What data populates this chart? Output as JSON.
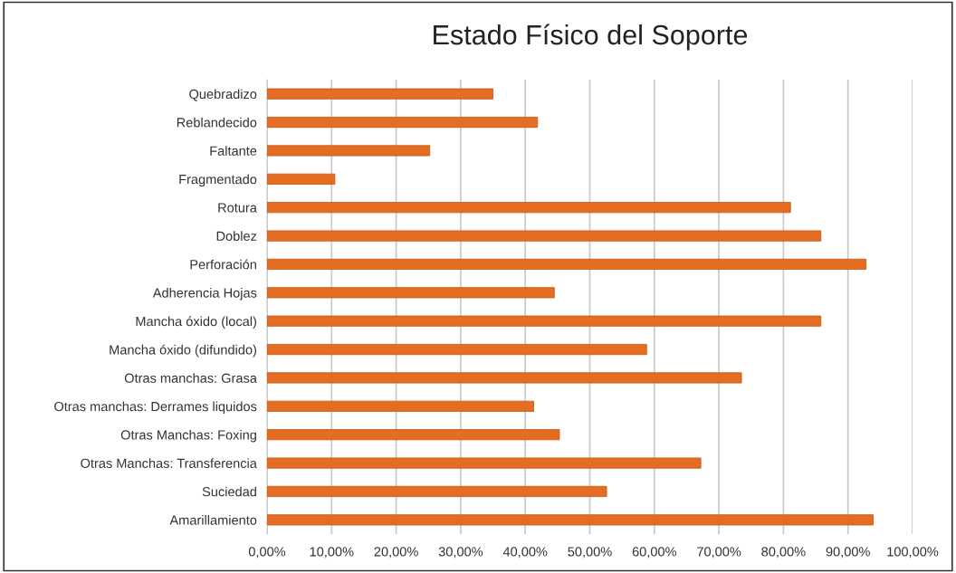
{
  "chart_data": {
    "type": "bar",
    "orientation": "horizontal",
    "title": "Estado Físico del Soporte",
    "categories": [
      "Quebradizo",
      "Reblandecido",
      "Faltante",
      "Fragmentado",
      "Rotura",
      "Doblez",
      "Perforación",
      "Adherencia Hojas",
      "Mancha óxido (local)",
      "Mancha óxido (difundido)",
      "Otras manchas: Grasa",
      "Otras manchas: Derrames liquidos",
      "Otras Manchas: Foxing",
      "Otras Manchas: Transferencia",
      "Suciedad",
      "Amarillamiento"
    ],
    "values": [
      35.0,
      41.9,
      25.2,
      10.5,
      81.1,
      85.8,
      92.8,
      44.5,
      85.8,
      58.8,
      73.5,
      41.3,
      45.3,
      67.2,
      52.6,
      93.9
    ],
    "color": "#e46c23",
    "xlim": [
      0,
      100
    ],
    "xticks": [
      {
        "value": 0,
        "label": "0,00%"
      },
      {
        "value": 10,
        "label": "10,00%"
      },
      {
        "value": 20,
        "label": "20,00%"
      },
      {
        "value": 30,
        "label": "30,00%"
      },
      {
        "value": 40,
        "label": "40,00%"
      },
      {
        "value": 50,
        "label": "50,00%"
      },
      {
        "value": 60,
        "label": "60,00%"
      },
      {
        "value": 70,
        "label": "70,00%"
      },
      {
        "value": 80,
        "label": "80,00%"
      },
      {
        "value": 90,
        "label": "90,00%"
      },
      {
        "value": 100,
        "label": "100,00%"
      }
    ],
    "grid": "x",
    "legend": false
  }
}
